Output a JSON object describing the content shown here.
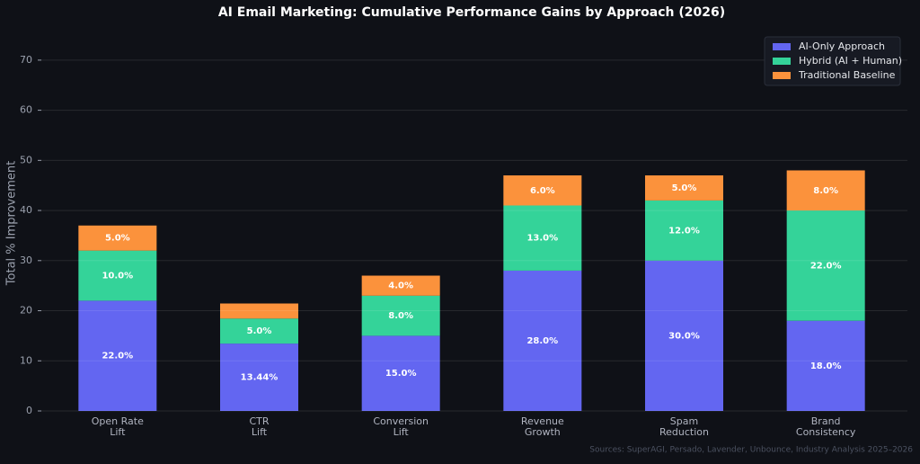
{
  "chart_data": {
    "type": "stacked_bar",
    "title": "AI Email Marketing: Cumulative Performance Gains by Approach (2026)",
    "y_label": "Total % Improvement",
    "source": "Sources: SuperAGI, Persado, Lavender, Unbounce, Industry Analysis 2025–2026",
    "categories": [
      "Open Rate\nLift",
      "CTR\nLift",
      "Conversion\nLift",
      "Revenue\nGrowth",
      "Spam\nReduction",
      "Brand\nConsistency"
    ],
    "series": [
      {
        "name": "AI-Only Approach",
        "color": "#6366f1",
        "values": [
          22,
          13.44,
          15,
          28,
          30,
          18
        ],
        "value_labels": [
          "22.0%",
          "13.44%",
          "15.0%",
          "28.0%",
          "30.0%",
          "18.0%"
        ]
      },
      {
        "name": "Hybrid (AI + Human)",
        "color": "#34d399",
        "values": [
          10,
          5,
          8,
          13,
          12,
          22
        ],
        "value_labels": [
          "10.0%",
          "5.0%",
          "8.0%",
          "13.0%",
          "12.0%",
          "22.0%"
        ]
      },
      {
        "name": "Traditional Baseline",
        "color": "#fb923c",
        "values": [
          5,
          3,
          4,
          6,
          5,
          8
        ],
        "value_labels": [
          "5.0%",
          null,
          "4.0%",
          "6.0%",
          "5.0%",
          "8.0%"
        ]
      }
    ],
    "ylim": [
      0,
      75
    ],
    "yticks": [
      0,
      10,
      20,
      30,
      40,
      50,
      60,
      70
    ],
    "grid": true,
    "legend": "upper right"
  }
}
